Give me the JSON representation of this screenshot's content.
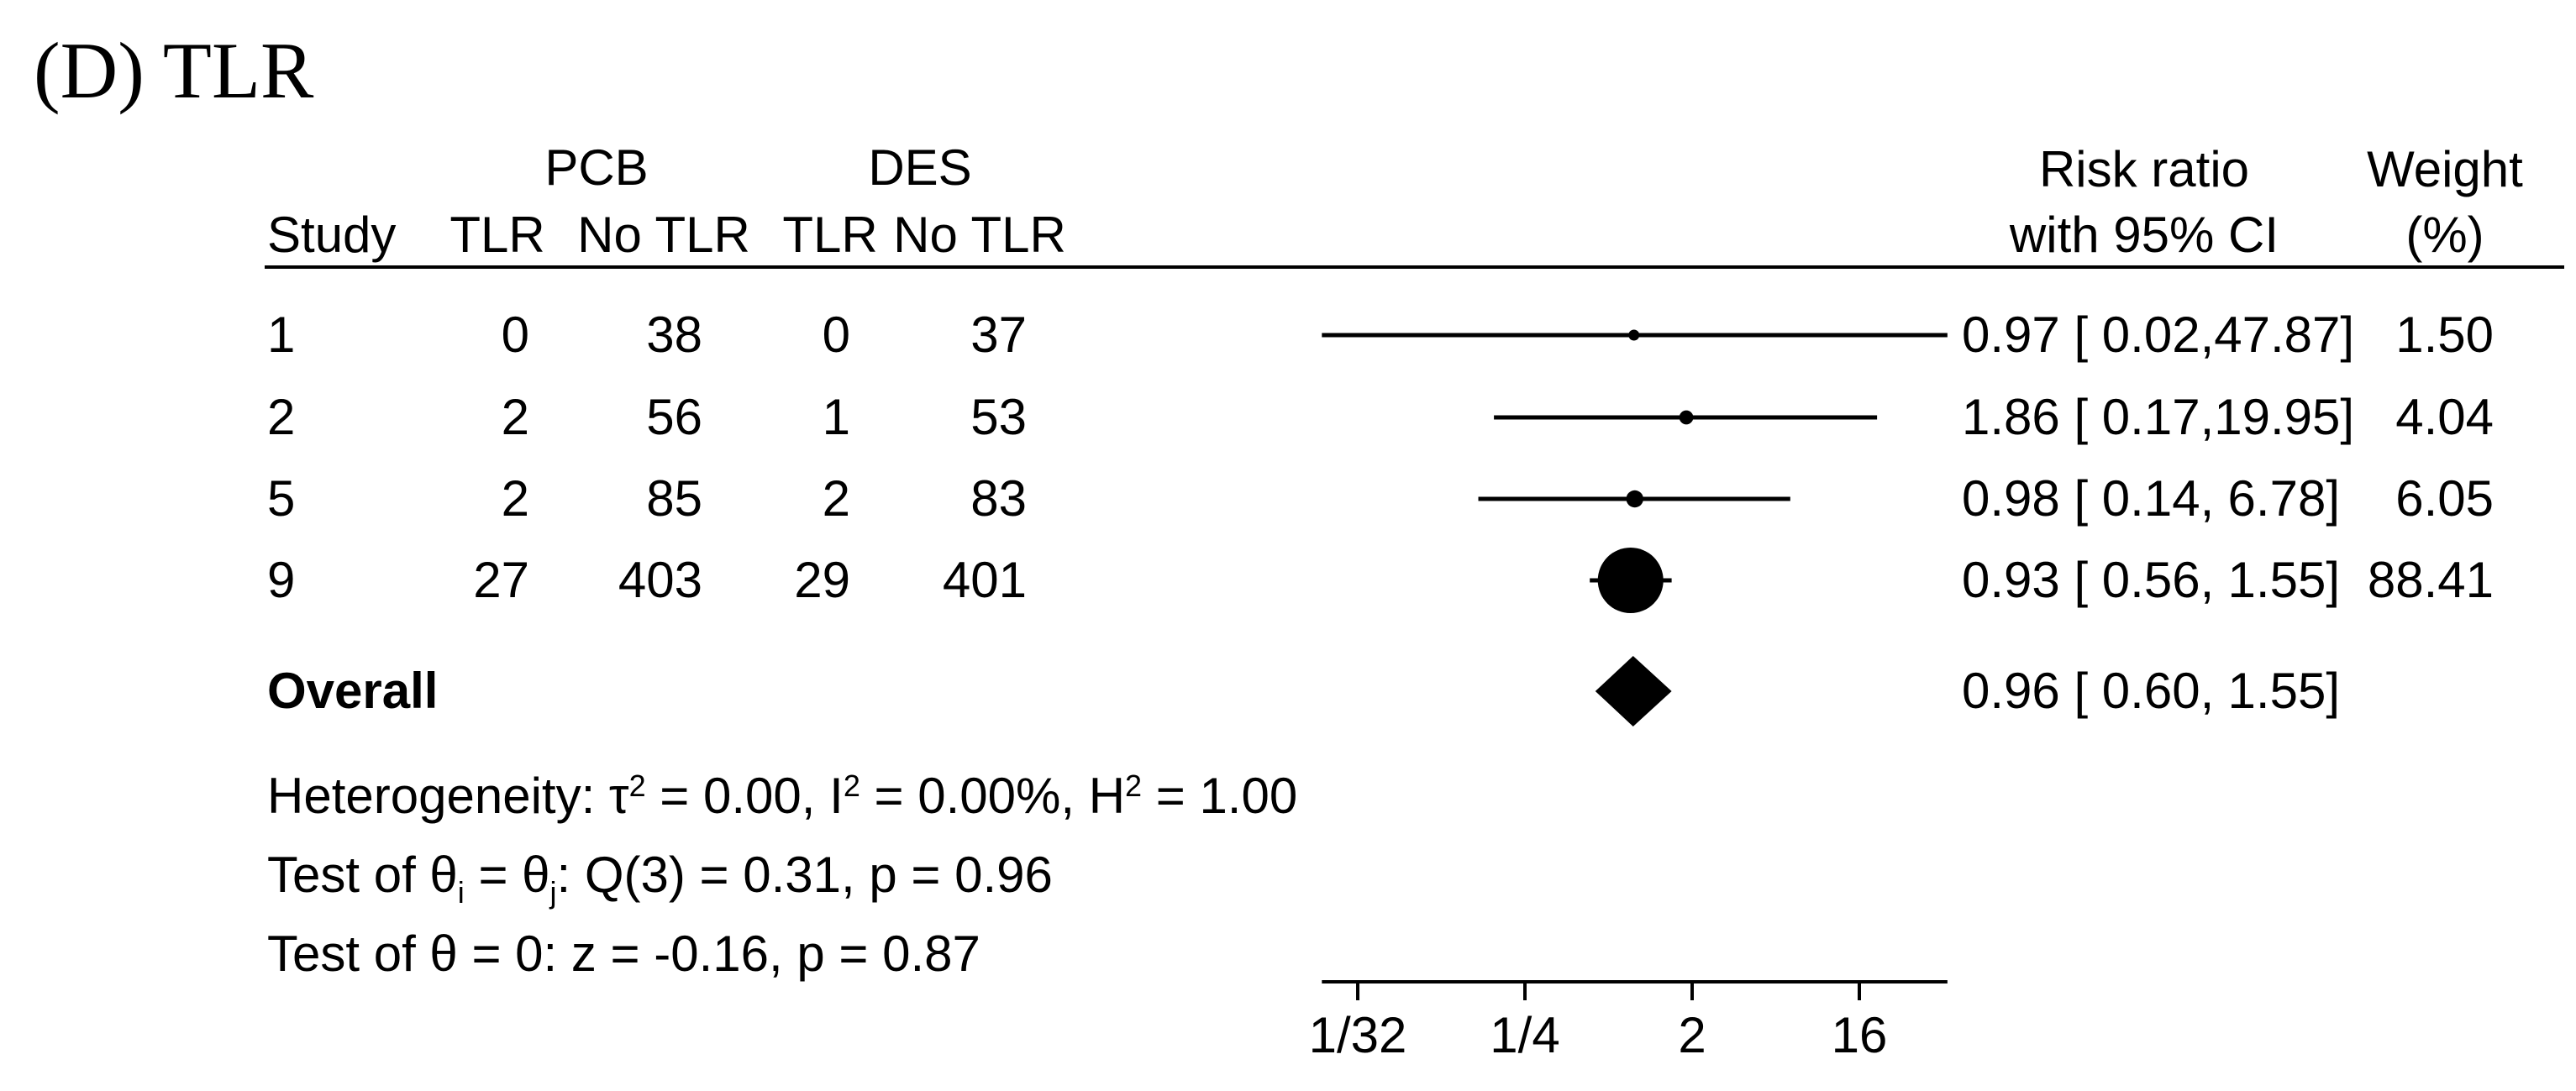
{
  "title": "(D) TLR",
  "table": {
    "group_headers": [
      {
        "label": "PCB"
      },
      {
        "label": "DES"
      }
    ],
    "col_headers": {
      "study": "Study",
      "pcb_tlr": "TLR",
      "pcb_no_tlr": "No TLR",
      "des_tlr": "TLR",
      "des_no_tlr": "No TLR"
    },
    "rr_header_line1": "Risk ratio",
    "rr_header_line2": "with 95% CI",
    "weight_header_line1": "Weight",
    "weight_header_line2": "(%)"
  },
  "chart_data": {
    "type": "forest",
    "x_scale": "log2",
    "effect_label": "Risk ratio",
    "axis": {
      "ticks": [
        {
          "label": "1/32",
          "value": 0.03125
        },
        {
          "label": "1/4",
          "value": 0.25
        },
        {
          "label": "2",
          "value": 2
        },
        {
          "label": "16",
          "value": 16
        }
      ],
      "range_lo": 0.02,
      "range_hi": 47.87
    },
    "studies": [
      {
        "label": "1",
        "pcb_tlr": "0",
        "pcb_no_tlr": "38",
        "des_tlr": "0",
        "des_no_tlr": "37",
        "rr": 0.97,
        "ci_lo": 0.02,
        "ci_hi": 47.87,
        "rr_text": "0.97",
        "ci_lo_text": "0.02",
        "ci_hi_text": "47.87",
        "weight": "1.50"
      },
      {
        "label": "2",
        "pcb_tlr": "2",
        "pcb_no_tlr": "56",
        "des_tlr": "1",
        "des_no_tlr": "53",
        "rr": 1.86,
        "ci_lo": 0.17,
        "ci_hi": 19.95,
        "rr_text": "1.86",
        "ci_lo_text": "0.17",
        "ci_hi_text": "19.95",
        "weight": "4.04"
      },
      {
        "label": "5",
        "pcb_tlr": "2",
        "pcb_no_tlr": "85",
        "des_tlr": "2",
        "des_no_tlr": "83",
        "rr": 0.98,
        "ci_lo": 0.14,
        "ci_hi": 6.78,
        "rr_text": "0.98",
        "ci_lo_text": "0.14",
        "ci_hi_text": "6.78",
        "weight": "6.05"
      },
      {
        "label": "9",
        "pcb_tlr": "27",
        "pcb_no_tlr": "403",
        "des_tlr": "29",
        "des_no_tlr": "401",
        "rr": 0.93,
        "ci_lo": 0.56,
        "ci_hi": 1.55,
        "rr_text": "0.93",
        "ci_lo_text": "0.56",
        "ci_hi_text": "1.55",
        "weight": "88.41"
      }
    ],
    "overall": {
      "label": "Overall",
      "rr": 0.96,
      "ci_lo": 0.6,
      "ci_hi": 1.55,
      "rr_text": "0.96",
      "ci_lo_text": "0.60",
      "ci_hi_text": "1.55"
    }
  },
  "stats": [
    {
      "segments": [
        {
          "t": "Heterogeneity: τ"
        },
        {
          "t": "2",
          "s": "sup"
        },
        {
          "t": " = 0.00, I"
        },
        {
          "t": "2",
          "s": "sup"
        },
        {
          "t": " = 0.00%, H"
        },
        {
          "t": "2",
          "s": "sup"
        },
        {
          "t": " = 1.00"
        }
      ]
    },
    {
      "segments": [
        {
          "t": "Test of θ"
        },
        {
          "t": "i",
          "s": "sub"
        },
        {
          "t": " = θ"
        },
        {
          "t": "j",
          "s": "sub"
        },
        {
          "t": ": Q(3) = 0.31, p = 0.96"
        }
      ]
    },
    {
      "segments": [
        {
          "t": "Test of θ = 0: z = -0.16, p = 0.87"
        }
      ]
    }
  ],
  "colors": {
    "foreground": "#000000",
    "background": "#ffffff"
  }
}
